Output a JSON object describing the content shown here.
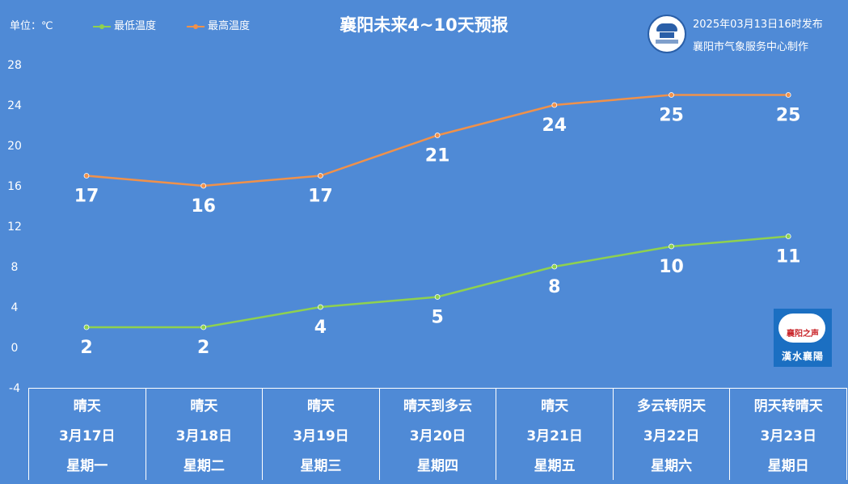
{
  "header": {
    "unit": "单位：℃",
    "title": "襄阳未来4~10天预报",
    "publish_time": "2025年03月13日16时发布",
    "producer": "襄阳市气象服务中心制作"
  },
  "logos": {
    "radio_text": "襄阳之声",
    "radio_subtext": "漢水襄陽"
  },
  "colors": {
    "background": "#4f8ad6",
    "low_line": "#8fd14f",
    "high_line": "#f0914a",
    "text": "#ffffff"
  },
  "chart_data": {
    "type": "line",
    "title": "襄阳未来4~10天预报",
    "xlabel": "",
    "ylabel": "单位：℃",
    "categories": [
      "3月17日",
      "3月18日",
      "3月19日",
      "3月20日",
      "3月21日",
      "3月22日",
      "3月23日"
    ],
    "ylim": [
      -4,
      28
    ],
    "yticks": [
      -4,
      0,
      4,
      8,
      12,
      16,
      20,
      24,
      28
    ],
    "legend_position": "top-left",
    "grid": false,
    "series": [
      {
        "name": "最低温度",
        "values": [
          2,
          2,
          4,
          5,
          8,
          10,
          11
        ],
        "labels": [
          "2",
          "2",
          "4",
          "5",
          "8",
          "10",
          "11"
        ],
        "color": "#8fd14f"
      },
      {
        "name": "最高温度",
        "values": [
          17,
          16,
          17,
          21,
          24,
          25,
          25
        ],
        "labels": [
          "17",
          "16",
          "17",
          "21",
          "24",
          "25",
          "25"
        ],
        "color": "#f0914a"
      }
    ]
  },
  "days": [
    {
      "weather": "晴天",
      "date": "3月17日",
      "weekday": "星期一"
    },
    {
      "weather": "晴天",
      "date": "3月18日",
      "weekday": "星期二"
    },
    {
      "weather": "晴天",
      "date": "3月19日",
      "weekday": "星期三"
    },
    {
      "weather": "晴天到多云",
      "date": "3月20日",
      "weekday": "星期四"
    },
    {
      "weather": "晴天",
      "date": "3月21日",
      "weekday": "星期五"
    },
    {
      "weather": "多云转阴天",
      "date": "3月22日",
      "weekday": "星期六"
    },
    {
      "weather": "阴天转晴天",
      "date": "3月23日",
      "weekday": "星期日"
    }
  ]
}
